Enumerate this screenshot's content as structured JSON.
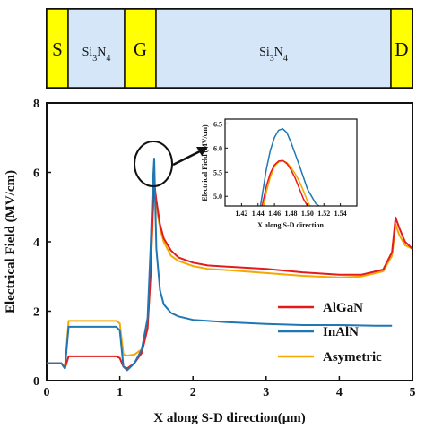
{
  "device": {
    "segments": [
      {
        "label": "S",
        "sub": "",
        "color": "#ffff00"
      },
      {
        "label": "Si",
        "sub": "3",
        "rest": "N",
        "sub2": "4",
        "color": "#d4e6f7"
      },
      {
        "label": "G",
        "sub": "",
        "color": "#ffff00"
      },
      {
        "label": "Si",
        "sub": "3",
        "rest": "N",
        "sub2": "4",
        "color": "#d4e6f7"
      },
      {
        "label": "D",
        "sub": "",
        "color": "#ffff00"
      }
    ]
  },
  "chart_data": {
    "type": "line",
    "xlabel": "X along S-D direction(μm)",
    "ylabel": "Electrical Field (MV/cm)",
    "xlim": [
      0,
      5
    ],
    "ylim": [
      0,
      8
    ],
    "xticks": [
      "0",
      "1",
      "2",
      "3",
      "4",
      "5"
    ],
    "yticks": [
      "0",
      "2",
      "4",
      "6",
      "8"
    ],
    "legend_position": "bottom-right",
    "series": [
      {
        "name": "AlGaN",
        "color": "#e41a1c",
        "x": [
          0,
          0.2,
          0.25,
          0.3,
          0.95,
          1.0,
          1.05,
          1.1,
          1.2,
          1.3,
          1.38,
          1.42,
          1.45,
          1.47,
          1.5,
          1.55,
          1.6,
          1.7,
          1.8,
          2.0,
          2.2,
          2.5,
          3.0,
          3.5,
          4.0,
          4.3,
          4.6,
          4.72,
          4.77,
          4.82,
          4.9,
          5.0
        ],
        "y": [
          0.5,
          0.5,
          0.35,
          0.7,
          0.7,
          0.65,
          0.4,
          0.35,
          0.5,
          0.8,
          1.5,
          3.0,
          4.8,
          5.7,
          5.2,
          4.5,
          4.1,
          3.75,
          3.55,
          3.4,
          3.32,
          3.28,
          3.22,
          3.12,
          3.05,
          3.05,
          3.2,
          3.7,
          4.7,
          4.4,
          4.0,
          3.8
        ]
      },
      {
        "name": "InAlN",
        "color": "#1f77b4",
        "x": [
          0,
          0.2,
          0.25,
          0.3,
          0.95,
          1.0,
          1.05,
          1.1,
          1.2,
          1.3,
          1.38,
          1.42,
          1.45,
          1.47,
          1.5,
          1.55,
          1.6,
          1.7,
          1.8,
          2.0,
          2.5,
          3.0,
          3.5,
          4.0,
          4.5,
          4.7,
          4.72
        ],
        "y": [
          0.5,
          0.5,
          0.35,
          1.55,
          1.55,
          1.45,
          0.4,
          0.3,
          0.5,
          0.9,
          1.8,
          3.8,
          5.6,
          6.4,
          3.8,
          2.6,
          2.2,
          1.95,
          1.85,
          1.75,
          1.68,
          1.63,
          1.6,
          1.6,
          1.58,
          1.58,
          1.58
        ]
      },
      {
        "name": "Asymetric",
        "color": "#f5a800",
        "x": [
          0,
          0.2,
          0.25,
          0.3,
          0.95,
          1.0,
          1.05,
          1.1,
          1.2,
          1.3,
          1.38,
          1.42,
          1.45,
          1.47,
          1.5,
          1.55,
          1.6,
          1.7,
          1.8,
          2.0,
          2.2,
          2.5,
          3.0,
          3.5,
          4.0,
          4.3,
          4.6,
          4.72,
          4.77,
          4.82,
          4.9,
          5.0
        ],
        "y": [
          0.5,
          0.5,
          0.4,
          1.72,
          1.72,
          1.65,
          0.75,
          0.72,
          0.75,
          0.9,
          1.6,
          3.0,
          4.6,
          5.6,
          5.0,
          4.4,
          4.0,
          3.6,
          3.45,
          3.3,
          3.22,
          3.18,
          3.1,
          3.02,
          2.97,
          3.0,
          3.15,
          3.6,
          4.5,
          4.2,
          3.9,
          3.8
        ]
      }
    ],
    "inset": {
      "xlabel": "X along S-D direction",
      "ylabel": "Electrical Field (MV/cm)",
      "xlim": [
        1.4,
        1.56
      ],
      "ylim": [
        4.8,
        6.6
      ],
      "xticks": [
        "1.42",
        "1.44",
        "1.46",
        "1.48",
        "1.50",
        "1.52",
        "1.54"
      ],
      "yticks": [
        "5.0",
        "5.5",
        "6.0",
        "6.5"
      ],
      "series": [
        {
          "name": "AlGaN",
          "color": "#e41a1c",
          "x": [
            1.445,
            1.45,
            1.455,
            1.46,
            1.465,
            1.47,
            1.475,
            1.48,
            1.485,
            1.49,
            1.495,
            1.5
          ],
          "y": [
            4.8,
            5.2,
            5.48,
            5.65,
            5.73,
            5.74,
            5.68,
            5.55,
            5.38,
            5.17,
            4.95,
            4.8
          ]
        },
        {
          "name": "InAlN",
          "color": "#1f77b4",
          "x": [
            1.443,
            1.45,
            1.455,
            1.46,
            1.465,
            1.47,
            1.475,
            1.48,
            1.49,
            1.5,
            1.51,
            1.514
          ],
          "y": [
            4.8,
            5.55,
            5.95,
            6.22,
            6.37,
            6.4,
            6.32,
            6.12,
            5.65,
            5.15,
            4.85,
            4.8
          ]
        },
        {
          "name": "Asymetric",
          "color": "#f5a800",
          "x": [
            1.447,
            1.45,
            1.455,
            1.46,
            1.465,
            1.47,
            1.475,
            1.48,
            1.485,
            1.49,
            1.495,
            1.5,
            1.503
          ],
          "y": [
            4.8,
            5.08,
            5.4,
            5.62,
            5.71,
            5.74,
            5.7,
            5.6,
            5.47,
            5.32,
            5.12,
            4.9,
            4.8
          ]
        }
      ]
    },
    "annotation": {
      "type": "ellipse-with-arrow",
      "target_x": 1.47,
      "target_y": 6.2
    }
  }
}
